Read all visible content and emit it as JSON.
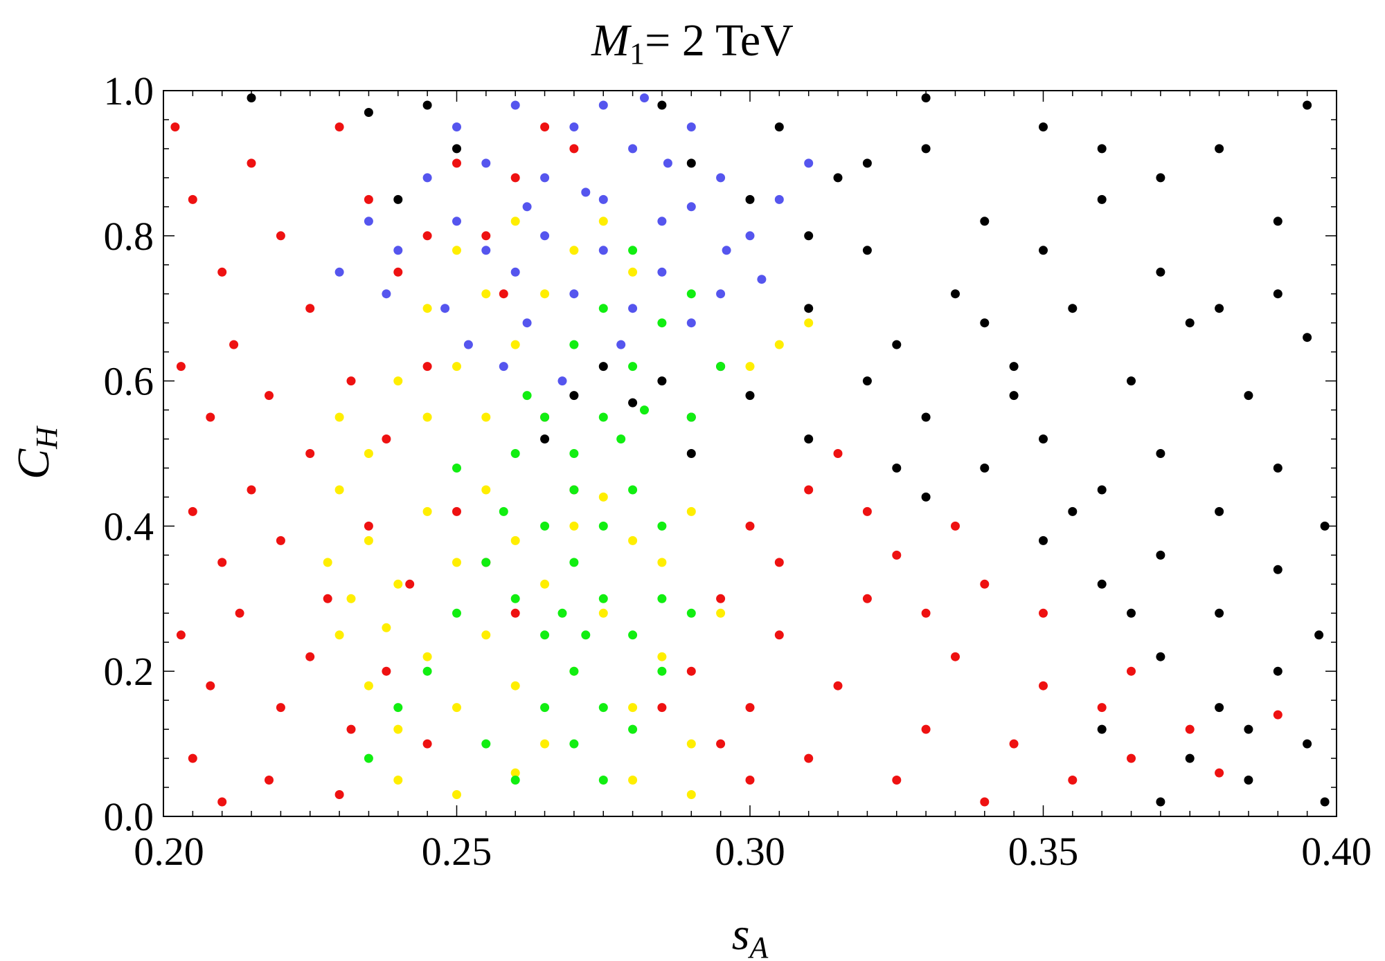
{
  "chart_data": {
    "type": "scatter",
    "title": {
      "var": "M",
      "sub": "1",
      "rest": "= 2 TeV"
    },
    "xlabel": {
      "var": "s",
      "sub": "A"
    },
    "ylabel": {
      "var": "C",
      "sub": "H"
    },
    "xlim": [
      0.2,
      0.4
    ],
    "ylim": [
      0.0,
      1.0
    ],
    "grid": false,
    "xticks": [
      {
        "value": 0.2,
        "label": "0.20"
      },
      {
        "value": 0.25,
        "label": "0.25"
      },
      {
        "value": 0.3,
        "label": "0.30"
      },
      {
        "value": 0.35,
        "label": "0.35"
      },
      {
        "value": 0.4,
        "label": "0.40"
      }
    ],
    "yticks": [
      {
        "value": 0.0,
        "label": "0.0"
      },
      {
        "value": 0.2,
        "label": "0.2"
      },
      {
        "value": 0.4,
        "label": "0.4"
      },
      {
        "value": 0.6,
        "label": "0.6"
      },
      {
        "value": 0.8,
        "label": "0.8"
      },
      {
        "value": 1.0,
        "label": "1.0"
      }
    ],
    "series": [
      {
        "color": "#000000",
        "points": [
          [
            0.305,
            0.95
          ],
          [
            0.315,
            0.88
          ],
          [
            0.32,
            0.78
          ],
          [
            0.33,
            0.92
          ],
          [
            0.34,
            0.82
          ],
          [
            0.35,
            0.95
          ],
          [
            0.36,
            0.85
          ],
          [
            0.37,
            0.75
          ],
          [
            0.38,
            0.92
          ],
          [
            0.39,
            0.82
          ],
          [
            0.395,
            0.98
          ],
          [
            0.31,
            0.7
          ],
          [
            0.325,
            0.65
          ],
          [
            0.335,
            0.72
          ],
          [
            0.345,
            0.62
          ],
          [
            0.355,
            0.7
          ],
          [
            0.365,
            0.6
          ],
          [
            0.375,
            0.68
          ],
          [
            0.385,
            0.58
          ],
          [
            0.395,
            0.66
          ],
          [
            0.33,
            0.55
          ],
          [
            0.34,
            0.48
          ],
          [
            0.35,
            0.52
          ],
          [
            0.36,
            0.45
          ],
          [
            0.37,
            0.5
          ],
          [
            0.38,
            0.42
          ],
          [
            0.39,
            0.48
          ],
          [
            0.398,
            0.4
          ],
          [
            0.35,
            0.38
          ],
          [
            0.36,
            0.32
          ],
          [
            0.37,
            0.36
          ],
          [
            0.38,
            0.28
          ],
          [
            0.39,
            0.34
          ],
          [
            0.397,
            0.25
          ],
          [
            0.37,
            0.22
          ],
          [
            0.38,
            0.15
          ],
          [
            0.39,
            0.2
          ],
          [
            0.395,
            0.1
          ],
          [
            0.385,
            0.05
          ],
          [
            0.375,
            0.08
          ],
          [
            0.36,
            0.12
          ],
          [
            0.3,
            0.58
          ],
          [
            0.295,
            0.62
          ],
          [
            0.29,
            0.55
          ],
          [
            0.285,
            0.6
          ],
          [
            0.28,
            0.57
          ],
          [
            0.29,
            0.5
          ],
          [
            0.31,
            0.52
          ],
          [
            0.32,
            0.6
          ],
          [
            0.285,
            0.98
          ],
          [
            0.29,
            0.9
          ],
          [
            0.3,
            0.85
          ],
          [
            0.31,
            0.8
          ],
          [
            0.32,
            0.9
          ],
          [
            0.33,
            0.99
          ],
          [
            0.34,
            0.68
          ],
          [
            0.35,
            0.78
          ],
          [
            0.36,
            0.92
          ],
          [
            0.37,
            0.88
          ],
          [
            0.38,
            0.7
          ],
          [
            0.39,
            0.72
          ],
          [
            0.33,
            0.44
          ],
          [
            0.355,
            0.42
          ],
          [
            0.365,
            0.28
          ],
          [
            0.385,
            0.12
          ],
          [
            0.398,
            0.02
          ],
          [
            0.37,
            0.02
          ],
          [
            0.345,
            0.58
          ],
          [
            0.325,
            0.48
          ],
          [
            0.245,
            0.98
          ],
          [
            0.235,
            0.97
          ],
          [
            0.215,
            0.99
          ],
          [
            0.24,
            0.85
          ],
          [
            0.25,
            0.92
          ],
          [
            0.275,
            0.62
          ],
          [
            0.27,
            0.58
          ],
          [
            0.265,
            0.52
          ]
        ]
      },
      {
        "color": "#ee1111",
        "points": [
          [
            0.202,
            0.95
          ],
          [
            0.205,
            0.85
          ],
          [
            0.21,
            0.75
          ],
          [
            0.215,
            0.9
          ],
          [
            0.22,
            0.8
          ],
          [
            0.225,
            0.7
          ],
          [
            0.23,
            0.95
          ],
          [
            0.235,
            0.85
          ],
          [
            0.24,
            0.75
          ],
          [
            0.245,
            0.8
          ],
          [
            0.25,
            0.9
          ],
          [
            0.203,
            0.62
          ],
          [
            0.208,
            0.55
          ],
          [
            0.212,
            0.65
          ],
          [
            0.218,
            0.58
          ],
          [
            0.225,
            0.5
          ],
          [
            0.232,
            0.6
          ],
          [
            0.238,
            0.52
          ],
          [
            0.245,
            0.62
          ],
          [
            0.205,
            0.42
          ],
          [
            0.21,
            0.35
          ],
          [
            0.215,
            0.45
          ],
          [
            0.22,
            0.38
          ],
          [
            0.228,
            0.3
          ],
          [
            0.235,
            0.4
          ],
          [
            0.242,
            0.32
          ],
          [
            0.25,
            0.42
          ],
          [
            0.203,
            0.25
          ],
          [
            0.208,
            0.18
          ],
          [
            0.213,
            0.28
          ],
          [
            0.22,
            0.15
          ],
          [
            0.225,
            0.22
          ],
          [
            0.232,
            0.12
          ],
          [
            0.238,
            0.2
          ],
          [
            0.245,
            0.1
          ],
          [
            0.205,
            0.08
          ],
          [
            0.21,
            0.02
          ],
          [
            0.218,
            0.05
          ],
          [
            0.23,
            0.03
          ],
          [
            0.255,
            0.35
          ],
          [
            0.26,
            0.28
          ],
          [
            0.265,
            0.55
          ],
          [
            0.27,
            0.45
          ],
          [
            0.29,
            0.2
          ],
          [
            0.295,
            0.3
          ],
          [
            0.3,
            0.15
          ],
          [
            0.305,
            0.25
          ],
          [
            0.31,
            0.08
          ],
          [
            0.315,
            0.18
          ],
          [
            0.32,
            0.3
          ],
          [
            0.325,
            0.05
          ],
          [
            0.33,
            0.12
          ],
          [
            0.335,
            0.22
          ],
          [
            0.34,
            0.02
          ],
          [
            0.345,
            0.1
          ],
          [
            0.35,
            0.18
          ],
          [
            0.355,
            0.05
          ],
          [
            0.36,
            0.15
          ],
          [
            0.365,
            0.08
          ],
          [
            0.3,
            0.4
          ],
          [
            0.305,
            0.35
          ],
          [
            0.31,
            0.45
          ],
          [
            0.315,
            0.5
          ],
          [
            0.32,
            0.42
          ],
          [
            0.325,
            0.36
          ],
          [
            0.33,
            0.28
          ],
          [
            0.335,
            0.4
          ],
          [
            0.34,
            0.32
          ],
          [
            0.35,
            0.28
          ],
          [
            0.375,
            0.12
          ],
          [
            0.38,
            0.06
          ],
          [
            0.39,
            0.14
          ],
          [
            0.365,
            0.2
          ],
          [
            0.3,
            0.05
          ],
          [
            0.295,
            0.1
          ],
          [
            0.285,
            0.15
          ],
          [
            0.255,
            0.8
          ],
          [
            0.26,
            0.88
          ],
          [
            0.265,
            0.95
          ],
          [
            0.27,
            0.92
          ],
          [
            0.258,
            0.72
          ]
        ]
      },
      {
        "color": "#5555ee",
        "points": [
          [
            0.25,
            0.95
          ],
          [
            0.255,
            0.9
          ],
          [
            0.26,
            0.98
          ],
          [
            0.265,
            0.88
          ],
          [
            0.27,
            0.95
          ],
          [
            0.275,
            0.85
          ],
          [
            0.28,
            0.92
          ],
          [
            0.285,
            0.82
          ],
          [
            0.29,
            0.95
          ],
          [
            0.295,
            0.88
          ],
          [
            0.245,
            0.88
          ],
          [
            0.25,
            0.82
          ],
          [
            0.255,
            0.78
          ],
          [
            0.26,
            0.75
          ],
          [
            0.265,
            0.8
          ],
          [
            0.27,
            0.72
          ],
          [
            0.275,
            0.78
          ],
          [
            0.28,
            0.7
          ],
          [
            0.285,
            0.75
          ],
          [
            0.29,
            0.68
          ],
          [
            0.295,
            0.72
          ],
          [
            0.3,
            0.8
          ],
          [
            0.305,
            0.85
          ],
          [
            0.31,
            0.9
          ],
          [
            0.248,
            0.7
          ],
          [
            0.252,
            0.65
          ],
          [
            0.258,
            0.62
          ],
          [
            0.262,
            0.68
          ],
          [
            0.268,
            0.6
          ],
          [
            0.278,
            0.65
          ],
          [
            0.24,
            0.78
          ],
          [
            0.235,
            0.82
          ],
          [
            0.23,
            0.75
          ],
          [
            0.238,
            0.72
          ],
          [
            0.275,
            0.98
          ],
          [
            0.282,
            0.99
          ],
          [
            0.29,
            0.84
          ],
          [
            0.286,
            0.9
          ],
          [
            0.262,
            0.84
          ],
          [
            0.272,
            0.86
          ],
          [
            0.296,
            0.78
          ],
          [
            0.302,
            0.74
          ]
        ]
      },
      {
        "color": "#ffee00",
        "points": [
          [
            0.23,
            0.45
          ],
          [
            0.235,
            0.38
          ],
          [
            0.24,
            0.32
          ],
          [
            0.245,
            0.42
          ],
          [
            0.25,
            0.35
          ],
          [
            0.255,
            0.45
          ],
          [
            0.26,
            0.38
          ],
          [
            0.265,
            0.32
          ],
          [
            0.23,
            0.25
          ],
          [
            0.235,
            0.18
          ],
          [
            0.24,
            0.12
          ],
          [
            0.245,
            0.22
          ],
          [
            0.25,
            0.15
          ],
          [
            0.255,
            0.25
          ],
          [
            0.26,
            0.18
          ],
          [
            0.265,
            0.1
          ],
          [
            0.27,
            0.2
          ],
          [
            0.275,
            0.28
          ],
          [
            0.28,
            0.15
          ],
          [
            0.285,
            0.22
          ],
          [
            0.29,
            0.1
          ],
          [
            0.24,
            0.05
          ],
          [
            0.25,
            0.03
          ],
          [
            0.26,
            0.06
          ],
          [
            0.28,
            0.05
          ],
          [
            0.29,
            0.03
          ],
          [
            0.245,
            0.55
          ],
          [
            0.25,
            0.62
          ],
          [
            0.255,
            0.55
          ],
          [
            0.26,
            0.65
          ],
          [
            0.265,
            0.72
          ],
          [
            0.27,
            0.78
          ],
          [
            0.275,
            0.82
          ],
          [
            0.28,
            0.75
          ],
          [
            0.255,
            0.72
          ],
          [
            0.245,
            0.7
          ],
          [
            0.25,
            0.78
          ],
          [
            0.26,
            0.82
          ],
          [
            0.285,
            0.35
          ],
          [
            0.29,
            0.42
          ],
          [
            0.295,
            0.28
          ],
          [
            0.3,
            0.62
          ],
          [
            0.305,
            0.65
          ],
          [
            0.31,
            0.68
          ],
          [
            0.23,
            0.55
          ],
          [
            0.235,
            0.5
          ],
          [
            0.24,
            0.6
          ],
          [
            0.228,
            0.35
          ],
          [
            0.232,
            0.3
          ],
          [
            0.238,
            0.26
          ],
          [
            0.27,
            0.4
          ],
          [
            0.275,
            0.44
          ],
          [
            0.28,
            0.38
          ]
        ]
      },
      {
        "color": "#11ee11",
        "points": [
          [
            0.255,
            0.35
          ],
          [
            0.26,
            0.3
          ],
          [
            0.265,
            0.25
          ],
          [
            0.27,
            0.35
          ],
          [
            0.275,
            0.3
          ],
          [
            0.28,
            0.25
          ],
          [
            0.265,
            0.4
          ],
          [
            0.27,
            0.45
          ],
          [
            0.275,
            0.4
          ],
          [
            0.28,
            0.45
          ],
          [
            0.285,
            0.4
          ],
          [
            0.26,
            0.5
          ],
          [
            0.265,
            0.55
          ],
          [
            0.27,
            0.5
          ],
          [
            0.275,
            0.55
          ],
          [
            0.28,
            0.62
          ],
          [
            0.285,
            0.68
          ],
          [
            0.29,
            0.72
          ],
          [
            0.27,
            0.65
          ],
          [
            0.275,
            0.7
          ],
          [
            0.28,
            0.78
          ],
          [
            0.265,
            0.15
          ],
          [
            0.27,
            0.1
          ],
          [
            0.275,
            0.05
          ],
          [
            0.28,
            0.12
          ],
          [
            0.26,
            0.05
          ],
          [
            0.255,
            0.1
          ],
          [
            0.27,
            0.2
          ],
          [
            0.275,
            0.15
          ],
          [
            0.285,
            0.2
          ],
          [
            0.29,
            0.55
          ],
          [
            0.295,
            0.62
          ],
          [
            0.285,
            0.3
          ],
          [
            0.29,
            0.28
          ],
          [
            0.25,
            0.28
          ],
          [
            0.245,
            0.2
          ],
          [
            0.24,
            0.15
          ],
          [
            0.235,
            0.08
          ],
          [
            0.25,
            0.48
          ],
          [
            0.258,
            0.42
          ],
          [
            0.262,
            0.58
          ],
          [
            0.278,
            0.52
          ],
          [
            0.282,
            0.56
          ],
          [
            0.268,
            0.28
          ],
          [
            0.272,
            0.25
          ]
        ]
      }
    ]
  }
}
